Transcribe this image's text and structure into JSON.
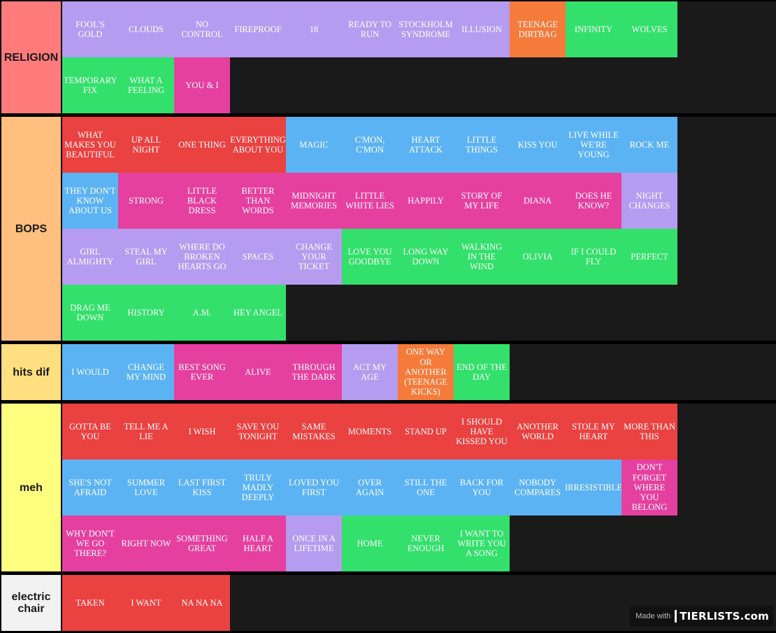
{
  "colors": {
    "purple": "#b59cf0",
    "green": "#33e06b",
    "orange": "#f47b3a",
    "pink": "#e5409f",
    "red": "#ea4141",
    "blue": "#5cb3f3"
  },
  "tiers": [
    {
      "label": "RELIGION",
      "color": "#ff7b7b",
      "items": [
        {
          "text": "FOOL'S GOLD",
          "color": "purple"
        },
        {
          "text": "CLOUDS",
          "color": "purple"
        },
        {
          "text": "NO CONTROL",
          "color": "purple"
        },
        {
          "text": "FIREPROOF",
          "color": "purple"
        },
        {
          "text": "18",
          "color": "purple"
        },
        {
          "text": "READY TO RUN",
          "color": "purple"
        },
        {
          "text": "STOCKHOLM SYNDROME",
          "color": "purple"
        },
        {
          "text": "ILLUSION",
          "color": "purple"
        },
        {
          "text": "TEENAGE DIRTBAG",
          "color": "orange"
        },
        {
          "text": "INFINITY",
          "color": "green"
        },
        {
          "text": "WOLVES",
          "color": "green"
        },
        {
          "text": "TEMPORARY FIX",
          "color": "green"
        },
        {
          "text": "WHAT A FEELING",
          "color": "green"
        },
        {
          "text": "YOU & I",
          "color": "pink"
        }
      ]
    },
    {
      "label": "BOPS",
      "color": "#ffbf7f",
      "items": [
        {
          "text": "WHAT MAKES YOU BEAUTIFUL",
          "color": "red"
        },
        {
          "text": "UP ALL NIGHT",
          "color": "red"
        },
        {
          "text": "ONE THING",
          "color": "red"
        },
        {
          "text": "EVERYTHING ABOUT YOU",
          "color": "red"
        },
        {
          "text": "MAGIC",
          "color": "blue"
        },
        {
          "text": "C'MON, C'MON",
          "color": "blue"
        },
        {
          "text": "HEART ATTACK",
          "color": "blue"
        },
        {
          "text": "LITTLE THINGS",
          "color": "blue"
        },
        {
          "text": "KISS YOU",
          "color": "blue"
        },
        {
          "text": "LIVE WHILE WE'RE YOUNG",
          "color": "blue"
        },
        {
          "text": "ROCK ME",
          "color": "blue"
        },
        {
          "text": "THEY DON'T KNOW ABOUT US",
          "color": "blue"
        },
        {
          "text": "STRONG",
          "color": "pink"
        },
        {
          "text": "LITTLE BLACK DRESS",
          "color": "pink"
        },
        {
          "text": "BETTER THAN WORDS",
          "color": "pink"
        },
        {
          "text": "MIDNIGHT MEMORIES",
          "color": "pink"
        },
        {
          "text": "LITTLE WHITE LIES",
          "color": "pink"
        },
        {
          "text": "HAPPILY",
          "color": "pink"
        },
        {
          "text": "STORY OF MY LIFE",
          "color": "pink"
        },
        {
          "text": "DIANA",
          "color": "pink"
        },
        {
          "text": "DOES HE KNOW?",
          "color": "pink"
        },
        {
          "text": "NIGHT CHANGES",
          "color": "purple"
        },
        {
          "text": "GIRL ALMIGHTY",
          "color": "purple"
        },
        {
          "text": "STEAL MY GIRL",
          "color": "purple"
        },
        {
          "text": "WHERE DO BROKEN HEARTS GO",
          "color": "purple"
        },
        {
          "text": "SPACES",
          "color": "purple"
        },
        {
          "text": "CHANGE YOUR TICKET",
          "color": "purple"
        },
        {
          "text": "LOVE YOU GOODBYE",
          "color": "green"
        },
        {
          "text": "LONG WAY DOWN",
          "color": "green"
        },
        {
          "text": "WALKING IN THE WIND",
          "color": "green"
        },
        {
          "text": "OLIVIA",
          "color": "green"
        },
        {
          "text": "IF I COULD FLY",
          "color": "green"
        },
        {
          "text": "PERFECT",
          "color": "green"
        },
        {
          "text": "DRAG ME DOWN",
          "color": "green"
        },
        {
          "text": "HISTORY",
          "color": "green"
        },
        {
          "text": "A.M.",
          "color": "green"
        },
        {
          "text": "HEY ANGEL",
          "color": "green"
        }
      ]
    },
    {
      "label": "hits dif",
      "color": "#ffdf7f",
      "items": [
        {
          "text": "I WOULD",
          "color": "blue"
        },
        {
          "text": "CHANGE MY MIND",
          "color": "blue"
        },
        {
          "text": "BEST SONG EVER",
          "color": "pink"
        },
        {
          "text": "ALIVE",
          "color": "pink"
        },
        {
          "text": "THROUGH THE DARK",
          "color": "pink"
        },
        {
          "text": "ACT MY AGE",
          "color": "purple"
        },
        {
          "text": "ONE WAY OR ANOTHER (TEENAGE KICKS)",
          "color": "orange"
        },
        {
          "text": "END OF THE DAY",
          "color": "green"
        }
      ]
    },
    {
      "label": "meh",
      "color": "#ffff7f",
      "items": [
        {
          "text": "GOTTA BE YOU",
          "color": "red"
        },
        {
          "text": "TELL ME A LIE",
          "color": "red"
        },
        {
          "text": "I WISH",
          "color": "red"
        },
        {
          "text": "SAVE YOU TONIGHT",
          "color": "red"
        },
        {
          "text": "SAME MISTAKES",
          "color": "red"
        },
        {
          "text": "MOMENTS",
          "color": "red"
        },
        {
          "text": "STAND UP",
          "color": "red"
        },
        {
          "text": "I SHOULD HAVE KISSED YOU",
          "color": "red"
        },
        {
          "text": "ANOTHER WORLD",
          "color": "red"
        },
        {
          "text": "STOLE MY HEART",
          "color": "red"
        },
        {
          "text": "MORE THAN THIS",
          "color": "red"
        },
        {
          "text": "SHE'S NOT AFRAID",
          "color": "blue"
        },
        {
          "text": "SUMMER LOVE",
          "color": "blue"
        },
        {
          "text": "LAST FIRST KISS",
          "color": "blue"
        },
        {
          "text": "TRULY MADLY DEEPLY",
          "color": "blue"
        },
        {
          "text": "LOVED YOU FIRST",
          "color": "blue"
        },
        {
          "text": "OVER AGAIN",
          "color": "blue"
        },
        {
          "text": "STILL THE ONE",
          "color": "blue"
        },
        {
          "text": "BACK FOR YOU",
          "color": "blue"
        },
        {
          "text": "NOBODY COMPARES",
          "color": "blue"
        },
        {
          "text": "IRRESISTIBLE",
          "color": "blue"
        },
        {
          "text": "DON'T FORGET WHERE YOU BELONG",
          "color": "pink"
        },
        {
          "text": "WHY DON'T WE GO THERE?",
          "color": "pink"
        },
        {
          "text": "RIGHT NOW",
          "color": "pink"
        },
        {
          "text": "SOMETHING GREAT",
          "color": "pink"
        },
        {
          "text": "HALF A HEART",
          "color": "pink"
        },
        {
          "text": "ONCE IN A LIFETIME",
          "color": "purple"
        },
        {
          "text": "HOME",
          "color": "green"
        },
        {
          "text": "NEVER ENOUGH",
          "color": "green"
        },
        {
          "text": "I WANT TO WRITE YOU A SONG",
          "color": "green"
        }
      ]
    },
    {
      "label": "electric chair",
      "color": "#f2f2f2",
      "items": [
        {
          "text": "TAKEN",
          "color": "red"
        },
        {
          "text": "I WANT",
          "color": "red"
        },
        {
          "text": "NA NA NA",
          "color": "red"
        }
      ]
    }
  ],
  "watermark": {
    "made_with": "Made with",
    "brand": "TIERLISTS.com"
  }
}
